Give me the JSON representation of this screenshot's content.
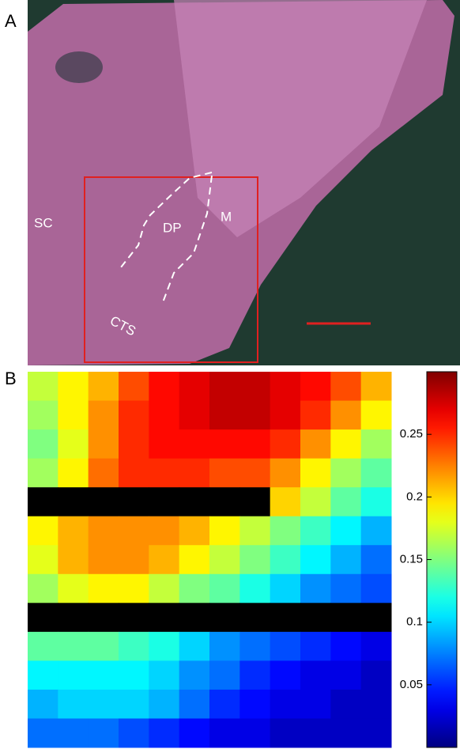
{
  "panels": {
    "a": {
      "label": "A",
      "annotations": [
        "SC",
        "DP",
        "M",
        "CTS"
      ]
    },
    "b": {
      "label": "B"
    }
  },
  "chart_data": {
    "type": "heatmap",
    "colormap": "jet",
    "clim": [
      0,
      0.3
    ],
    "colorbar_ticks": [
      0.25,
      0.2,
      0.15,
      0.1,
      0.05
    ],
    "values": [
      [
        0.17,
        0.19,
        0.21,
        0.24,
        0.26,
        0.27,
        0.28,
        0.28,
        0.27,
        0.26,
        0.24,
        0.21
      ],
      [
        0.16,
        0.19,
        0.22,
        0.25,
        0.26,
        0.27,
        0.28,
        0.28,
        0.27,
        0.25,
        0.22,
        0.19
      ],
      [
        0.15,
        0.18,
        0.22,
        0.25,
        0.26,
        0.26,
        0.26,
        0.26,
        0.25,
        0.22,
        0.19,
        0.16
      ],
      [
        0.16,
        0.19,
        0.23,
        0.25,
        0.25,
        0.25,
        0.24,
        0.24,
        0.22,
        0.19,
        0.16,
        0.14
      ],
      [
        null,
        null,
        null,
        null,
        null,
        null,
        null,
        null,
        0.2,
        0.17,
        0.14,
        0.12
      ],
      [
        0.19,
        0.21,
        0.22,
        0.22,
        0.22,
        0.21,
        0.19,
        0.17,
        0.15,
        0.13,
        0.11,
        0.09
      ],
      [
        0.18,
        0.21,
        0.22,
        0.22,
        0.21,
        0.19,
        0.17,
        0.15,
        0.13,
        0.11,
        0.09,
        0.07
      ],
      [
        0.16,
        0.18,
        0.19,
        0.19,
        0.17,
        0.15,
        0.14,
        0.12,
        0.1,
        0.08,
        0.07,
        0.06
      ],
      [
        null,
        null,
        null,
        null,
        null,
        null,
        null,
        null,
        null,
        null,
        null,
        null
      ],
      [
        0.14,
        0.14,
        0.14,
        0.13,
        0.12,
        0.1,
        0.08,
        0.07,
        0.06,
        0.05,
        0.04,
        0.03
      ],
      [
        0.11,
        0.11,
        0.11,
        0.11,
        0.1,
        0.08,
        0.07,
        0.05,
        0.04,
        0.03,
        0.03,
        0.02
      ],
      [
        0.09,
        0.1,
        0.1,
        0.1,
        0.09,
        0.07,
        0.05,
        0.04,
        0.03,
        0.03,
        0.02,
        0.02
      ],
      [
        0.07,
        0.07,
        0.07,
        0.06,
        0.05,
        0.04,
        0.03,
        0.03,
        0.02,
        0.02,
        0.02,
        0.02
      ]
    ]
  }
}
